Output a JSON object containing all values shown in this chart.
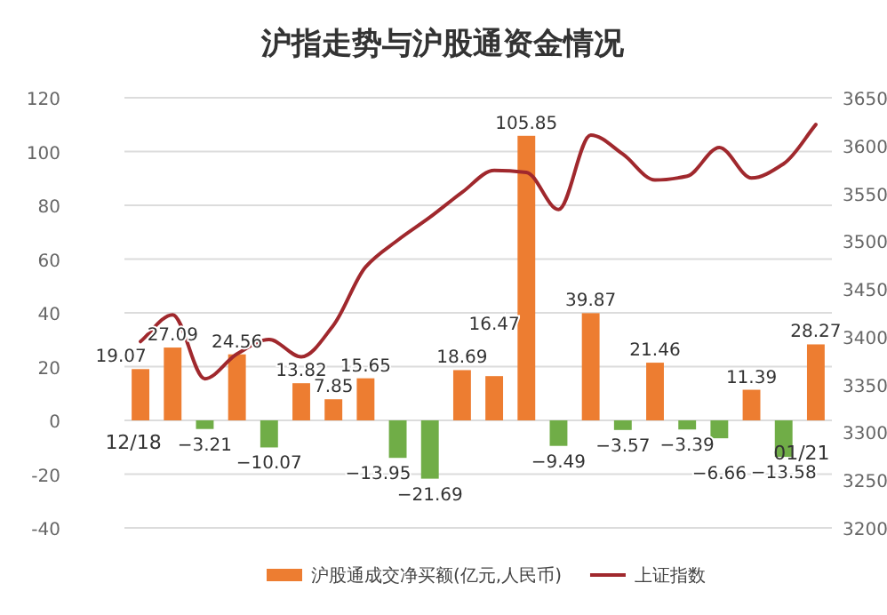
{
  "chart_data": {
    "type": "bar",
    "title": "沪指走势与沪股通资金情况",
    "categories": [
      "12/18",
      null,
      null,
      null,
      null,
      null,
      null,
      null,
      null,
      null,
      null,
      null,
      null,
      null,
      null,
      null,
      null,
      null,
      null,
      null,
      null,
      "01/21"
    ],
    "series": [
      {
        "name": "沪股通成交净买额(亿元,人民币)",
        "color": "#ed7d31",
        "colors": [
          "#ed7d31",
          "#ed7d31",
          "#70ad47",
          "#ed7d31",
          "#70ad47",
          "#ed7d31",
          "#ed7d31",
          "#ed7d31",
          "#70ad47",
          "#70ad47",
          "#ed7d31",
          "#ed7d31",
          "#ed7d31",
          "#70ad47",
          "#ed7d31",
          "#70ad47",
          "#ed7d31",
          "#70ad47",
          "#70ad47",
          "#ed7d31",
          "#70ad47",
          "#ed7d31"
        ],
        "values": [
          19.07,
          27.09,
          -3.21,
          24.56,
          -10.07,
          13.82,
          7.85,
          15.65,
          -13.95,
          -21.69,
          18.69,
          16.47,
          105.85,
          -9.49,
          39.87,
          -3.57,
          21.46,
          -3.39,
          -6.66,
          11.39,
          -13.58,
          28.27
        ],
        "value_labels": [
          "19.07",
          "27.09",
          "−3.21",
          "24.56",
          "−10.07",
          "13.82",
          "7.85",
          "15.65",
          "−13.95",
          "−21.69",
          "18.69",
          "16.47",
          "105.85",
          "−9.49",
          "39.87",
          "−3.57",
          "21.46",
          "−3.39",
          "−6.66",
          "11.39",
          "−13.58",
          "28.27"
        ]
      },
      {
        "name": "上证指数",
        "type": "line",
        "axis": "y2",
        "color": "#a0282d",
        "values": [
          3395,
          3423,
          3356,
          3382,
          3397,
          3379,
          3412,
          3473,
          3501,
          3525,
          3551,
          3574,
          3572,
          3533,
          3611,
          3591,
          3564,
          3568,
          3598,
          3566,
          3581,
          3622
        ]
      }
    ],
    "ylim": [
      -40,
      120
    ],
    "yticks": [
      -40,
      -20,
      0,
      20,
      40,
      60,
      80,
      100,
      120
    ],
    "y2lim": [
      3200,
      3650
    ],
    "y2ticks": [
      3200,
      3250,
      3300,
      3350,
      3400,
      3450,
      3500,
      3550,
      3600,
      3650
    ],
    "grid": "y",
    "legend": "bottom"
  }
}
